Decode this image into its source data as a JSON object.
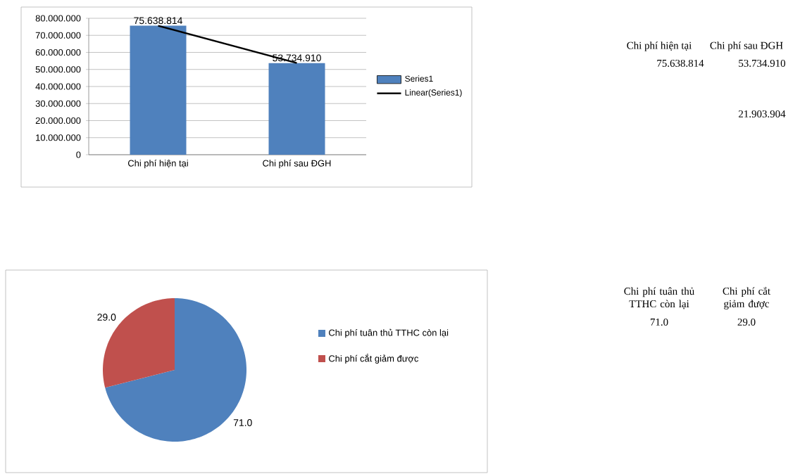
{
  "chart_data": [
    {
      "type": "bar",
      "categories": [
        "Chi phí hiện tại",
        "Chi phí sau ĐGH"
      ],
      "series": [
        {
          "name": "Series1",
          "color": "#4f81bd",
          "values": [
            75638814,
            53734910
          ],
          "value_labels": [
            "75.638.814",
            "53.734.910"
          ]
        },
        {
          "name": "Linear(Series1)",
          "type": "line",
          "color": "#000000",
          "values": [
            75638814,
            53734910
          ]
        }
      ],
      "ylim": [
        0,
        80000000
      ],
      "yticks": [
        0,
        {
          "value": 10000000,
          "label": "10.000.000"
        },
        {
          "value": 20000000,
          "label": "20.000.000"
        },
        {
          "value": 30000000,
          "label": "30.000.000"
        },
        {
          "value": 40000000,
          "label": "40.000.000"
        },
        {
          "value": 50000000,
          "label": "50.000.000"
        },
        {
          "value": 60000000,
          "label": "60.000.000"
        },
        {
          "value": 70000000,
          "label": "70.000.000"
        },
        {
          "value": 80000000,
          "label": "80.000.000"
        }
      ],
      "grid": "y",
      "legend": "right"
    },
    {
      "type": "other",
      "annotations": [
        "Chi phí hiện tại",
        "Chi phí sau ĐGH",
        "75.638.814",
        "53.734.910",
        "21.903.904"
      ]
    },
    {
      "type": "pie",
      "categories": [
        "Chi phí tuân thủ TTHC còn lại",
        "Chi phí cắt giảm được"
      ],
      "values": [
        71,
        29
      ],
      "colors": [
        "#4f81bd",
        "#c0504d"
      ],
      "value_labels": [
        "71.0",
        "29.0"
      ],
      "legend": "right"
    },
    {
      "type": "other",
      "annotations": [
        "Chi phí tuân thủ TTHC còn lại",
        "Chi phí cắt giảm được",
        "71.0",
        "29.0"
      ]
    }
  ]
}
